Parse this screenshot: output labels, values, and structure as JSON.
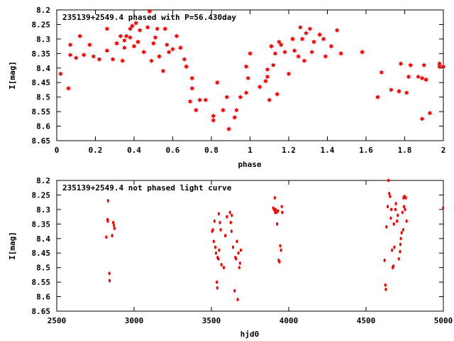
{
  "chart_data": [
    {
      "type": "scatter",
      "title": "235139+2549.4 phased with P=56.430day",
      "xlabel": "phase",
      "ylabel": "I[mag]",
      "xlim": [
        0,
        2
      ],
      "ylim": [
        8.65,
        8.2
      ],
      "y_inverted": true,
      "grid": false,
      "marker_color": "#ff0000",
      "marker": "star",
      "x_ticks": [
        "0",
        "0.2",
        "0.4",
        "0.6",
        "0.8",
        "1",
        "1.2",
        "1.4",
        "1.6",
        "1.8",
        "2"
      ],
      "y_ticks": [
        "8.2",
        "8.25",
        "8.3",
        "8.35",
        "8.4",
        "8.45",
        "8.5",
        "8.55",
        "8.6",
        "8.65"
      ],
      "points": [
        [
          0.02,
          8.42
        ],
        [
          0.06,
          8.47
        ],
        [
          0.07,
          8.355
        ],
        [
          0.07,
          8.32
        ],
        [
          0.1,
          8.365
        ],
        [
          0.12,
          8.29
        ],
        [
          0.14,
          8.355
        ],
        [
          0.17,
          8.32
        ],
        [
          0.19,
          8.36
        ],
        [
          0.22,
          8.37
        ],
        [
          0.26,
          8.34
        ],
        [
          0.26,
          8.265
        ],
        [
          0.29,
          8.37
        ],
        [
          0.31,
          8.315
        ],
        [
          0.33,
          8.29
        ],
        [
          0.34,
          8.375
        ],
        [
          0.35,
          8.305
        ],
        [
          0.35,
          8.33
        ],
        [
          0.36,
          8.29
        ],
        [
          0.38,
          8.295
        ],
        [
          0.38,
          8.265
        ],
        [
          0.39,
          8.255
        ],
        [
          0.4,
          8.325
        ],
        [
          0.41,
          8.245
        ],
        [
          0.42,
          8.31
        ],
        [
          0.43,
          8.27
        ],
        [
          0.45,
          8.345
        ],
        [
          0.47,
          8.26
        ],
        [
          0.48,
          8.205
        ],
        [
          0.49,
          8.375
        ],
        [
          0.5,
          8.315
        ],
        [
          0.51,
          8.295
        ],
        [
          0.52,
          8.265
        ],
        [
          0.53,
          8.36
        ],
        [
          0.55,
          8.41
        ],
        [
          0.56,
          8.265
        ],
        [
          0.57,
          8.32
        ],
        [
          0.58,
          8.345
        ],
        [
          0.6,
          8.335
        ],
        [
          0.62,
          8.29
        ],
        [
          0.64,
          8.33
        ],
        [
          0.66,
          8.37
        ],
        [
          0.67,
          8.395
        ],
        [
          0.69,
          8.515
        ],
        [
          0.7,
          8.47
        ],
        [
          0.7,
          8.435
        ],
        [
          0.72,
          8.545
        ],
        [
          0.74,
          8.51
        ],
        [
          0.77,
          8.51
        ],
        [
          0.81,
          8.58
        ],
        [
          0.81,
          8.565
        ],
        [
          0.83,
          8.45
        ],
        [
          0.86,
          8.545
        ],
        [
          0.88,
          8.5
        ],
        [
          0.89,
          8.61
        ],
        [
          0.92,
          8.57
        ],
        [
          0.93,
          8.545
        ],
        [
          0.95,
          8.5
        ],
        [
          0.98,
          8.395
        ],
        [
          0.98,
          8.485
        ],
        [
          0.99,
          8.435
        ],
        [
          1.0,
          8.35
        ],
        [
          1.05,
          8.465
        ],
        [
          1.08,
          8.445
        ],
        [
          1.09,
          8.405
        ],
        [
          1.09,
          8.43
        ],
        [
          1.1,
          8.51
        ],
        [
          1.11,
          8.325
        ],
        [
          1.12,
          8.39
        ],
        [
          1.13,
          8.35
        ],
        [
          1.14,
          8.49
        ],
        [
          1.15,
          8.31
        ],
        [
          1.16,
          8.32
        ],
        [
          1.18,
          8.345
        ],
        [
          1.2,
          8.42
        ],
        [
          1.22,
          8.3
        ],
        [
          1.23,
          8.34
        ],
        [
          1.25,
          8.36
        ],
        [
          1.26,
          8.26
        ],
        [
          1.27,
          8.3
        ],
        [
          1.28,
          8.375
        ],
        [
          1.29,
          8.28
        ],
        [
          1.31,
          8.265
        ],
        [
          1.32,
          8.345
        ],
        [
          1.33,
          8.31
        ],
        [
          1.36,
          8.285
        ],
        [
          1.38,
          8.3
        ],
        [
          1.39,
          8.36
        ],
        [
          1.42,
          8.325
        ],
        [
          1.45,
          8.27
        ],
        [
          1.47,
          8.35
        ],
        [
          1.58,
          8.345
        ],
        [
          1.66,
          8.5
        ],
        [
          1.68,
          8.415
        ],
        [
          1.73,
          8.475
        ],
        [
          1.77,
          8.48
        ],
        [
          1.78,
          8.385
        ],
        [
          1.81,
          8.485
        ],
        [
          1.82,
          8.43
        ],
        [
          1.83,
          8.39
        ],
        [
          1.87,
          8.43
        ],
        [
          1.89,
          8.435
        ],
        [
          1.89,
          8.575
        ],
        [
          1.9,
          8.39
        ],
        [
          1.91,
          8.44
        ],
        [
          1.93,
          8.555
        ],
        [
          1.98,
          8.385
        ],
        [
          1.98,
          8.395
        ],
        [
          2.0,
          8.395
        ]
      ]
    },
    {
      "type": "scatter",
      "title": "235139+2549.4 not phased light curve",
      "xlabel": "hjd0",
      "ylabel": "I[mag]",
      "xlim": [
        2500,
        5000
      ],
      "ylim": [
        8.65,
        8.2
      ],
      "y_inverted": true,
      "grid": false,
      "marker_color": "#ff0000",
      "marker": "dot",
      "x_ticks": [
        "2500",
        "3000",
        "3500",
        "4000",
        "4500",
        "5000"
      ],
      "y_ticks": [
        "8.2",
        "8.25",
        "8.3",
        "8.35",
        "8.4",
        "8.45",
        "8.5",
        "8.55",
        "8.6",
        "8.65"
      ],
      "points": [
        [
          2820,
          8.395
        ],
        [
          2828,
          8.335
        ],
        [
          2830,
          8.34
        ],
        [
          2832,
          8.27
        ],
        [
          2840,
          8.52
        ],
        [
          2842,
          8.545
        ],
        [
          2858,
          8.39
        ],
        [
          2865,
          8.345
        ],
        [
          2870,
          8.355
        ],
        [
          2873,
          8.365
        ],
        [
          3505,
          8.375
        ],
        [
          3510,
          8.37
        ],
        [
          3515,
          8.41
        ],
        [
          3520,
          8.34
        ],
        [
          3525,
          8.43
        ],
        [
          3530,
          8.45
        ],
        [
          3535,
          8.55
        ],
        [
          3538,
          8.57
        ],
        [
          3540,
          8.465
        ],
        [
          3545,
          8.47
        ],
        [
          3548,
          8.315
        ],
        [
          3550,
          8.44
        ],
        [
          3555,
          8.345
        ],
        [
          3560,
          8.37
        ],
        [
          3565,
          8.49
        ],
        [
          3580,
          8.5
        ],
        [
          3590,
          8.39
        ],
        [
          3600,
          8.325
        ],
        [
          3620,
          8.31
        ],
        [
          3625,
          8.345
        ],
        [
          3630,
          8.375
        ],
        [
          3632,
          8.32
        ],
        [
          3640,
          8.43
        ],
        [
          3650,
          8.58
        ],
        [
          3655,
          8.465
        ],
        [
          3660,
          8.47
        ],
        [
          3665,
          8.41
        ],
        [
          3670,
          8.61
        ],
        [
          3675,
          8.45
        ],
        [
          3680,
          8.5
        ],
        [
          3685,
          8.485
        ],
        [
          3690,
          8.44
        ],
        [
          3900,
          8.295
        ],
        [
          3905,
          8.3
        ],
        [
          3910,
          8.26
        ],
        [
          3912,
          8.31
        ],
        [
          3915,
          8.3
        ],
        [
          3920,
          8.31
        ],
        [
          3925,
          8.35
        ],
        [
          3930,
          8.305
        ],
        [
          3935,
          8.475
        ],
        [
          3940,
          8.48
        ],
        [
          3945,
          8.425
        ],
        [
          3950,
          8.44
        ],
        [
          3955,
          8.29
        ],
        [
          3958,
          8.31
        ],
        [
          4620,
          8.475
        ],
        [
          4625,
          8.56
        ],
        [
          4628,
          8.575
        ],
        [
          4632,
          8.36
        ],
        [
          4640,
          8.29
        ],
        [
          4645,
          8.2
        ],
        [
          4650,
          8.245
        ],
        [
          4655,
          8.255
        ],
        [
          4660,
          8.33
        ],
        [
          4663,
          8.3
        ],
        [
          4668,
          8.44
        ],
        [
          4672,
          8.5
        ],
        [
          4677,
          8.495
        ],
        [
          4680,
          8.35
        ],
        [
          4683,
          8.43
        ],
        [
          4690,
          8.3
        ],
        [
          4693,
          8.28
        ],
        [
          4700,
          8.34
        ],
        [
          4705,
          8.32
        ],
        [
          4712,
          8.47
        ],
        [
          4720,
          8.445
        ],
        [
          4722,
          8.42
        ],
        [
          4725,
          8.4
        ],
        [
          4730,
          8.38
        ],
        [
          4735,
          8.31
        ],
        [
          4740,
          8.37
        ],
        [
          4742,
          8.26
        ],
        [
          4745,
          8.29
        ],
        [
          4748,
          8.255
        ],
        [
          4752,
          8.3
        ],
        [
          4757,
          8.26
        ],
        [
          4762,
          8.34
        ],
        [
          4998,
          8.295
        ]
      ]
    }
  ]
}
